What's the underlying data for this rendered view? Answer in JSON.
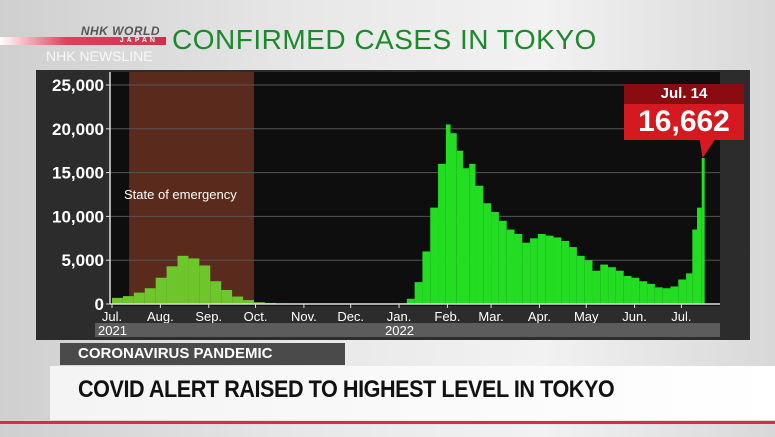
{
  "header": {
    "logo_text": "NHK WORLD JAPAN",
    "program": "NHK NEWSLINE",
    "title": "CONFIRMED CASES IN TOKYO"
  },
  "chart_data": {
    "type": "bar",
    "title": "CONFIRMED CASES IN TOKYO",
    "ylim": [
      0,
      25000
    ],
    "yticks": [
      "25,000",
      "20,000",
      "15,000",
      "10,000",
      "5,000",
      "0"
    ],
    "ytick_values": [
      25000,
      20000,
      15000,
      10000,
      5000,
      0
    ],
    "xticks": [
      "Jul.",
      "Aug.",
      "Sep.",
      "Oct.",
      "Nov.",
      "Dec.",
      "Jan.",
      "Feb.",
      "Mar.",
      "Apr.",
      "May",
      "Jun.",
      "Jul."
    ],
    "xtick_dates": [
      "2021-07-01",
      "2021-08-01",
      "2021-09-01",
      "2021-10-01",
      "2021-11-01",
      "2021-12-01",
      "2022-01-01",
      "2022-02-01",
      "2022-03-01",
      "2022-04-01",
      "2022-05-01",
      "2022-06-01",
      "2022-07-01"
    ],
    "years": [
      {
        "label": "2021",
        "date": "2021-07-01"
      },
      {
        "label": "2022",
        "date": "2022-01-01"
      }
    ],
    "shaded_period": {
      "label": "State of emergency",
      "start": "2021-07-12",
      "end": "2021-09-30",
      "color": "#5a2a1c"
    },
    "colors": {
      "emergency_bars": "#6cc62c",
      "bars": "#22dd22",
      "background": "#0e0e0e"
    },
    "x": [
      "2021-07-01",
      "2021-07-08",
      "2021-07-15",
      "2021-07-22",
      "2021-07-29",
      "2021-08-05",
      "2021-08-12",
      "2021-08-19",
      "2021-08-26",
      "2021-09-02",
      "2021-09-09",
      "2021-09-16",
      "2021-09-23",
      "2021-09-30",
      "2021-10-07",
      "2021-10-14",
      "2021-10-21",
      "2021-11-01",
      "2021-11-15",
      "2021-12-01",
      "2021-12-15",
      "2022-01-01",
      "2022-01-06",
      "2022-01-11",
      "2022-01-16",
      "2022-01-21",
      "2022-01-26",
      "2022-01-31",
      "2022-02-03",
      "2022-02-07",
      "2022-02-11",
      "2022-02-15",
      "2022-02-19",
      "2022-02-24",
      "2022-03-01",
      "2022-03-06",
      "2022-03-11",
      "2022-03-16",
      "2022-03-21",
      "2022-03-26",
      "2022-03-31",
      "2022-04-05",
      "2022-04-10",
      "2022-04-15",
      "2022-04-20",
      "2022-04-25",
      "2022-04-30",
      "2022-05-05",
      "2022-05-10",
      "2022-05-15",
      "2022-05-20",
      "2022-05-25",
      "2022-05-30",
      "2022-06-04",
      "2022-06-09",
      "2022-06-14",
      "2022-06-19",
      "2022-06-24",
      "2022-06-29",
      "2022-07-04",
      "2022-07-08",
      "2022-07-11",
      "2022-07-14"
    ],
    "values": [
      700,
      900,
      1300,
      1800,
      3000,
      4300,
      5500,
      5200,
      4400,
      2600,
      1600,
      850,
      450,
      200,
      120,
      70,
      40,
      30,
      25,
      20,
      40,
      80,
      600,
      2500,
      6000,
      11000,
      16000,
      20500,
      19500,
      17500,
      15500,
      16000,
      13500,
      11500,
      10500,
      9500,
      8500,
      8000,
      7000,
      7500,
      8000,
      7800,
      7600,
      7200,
      6500,
      5500,
      5000,
      3800,
      4500,
      4200,
      3800,
      3200,
      3000,
      2600,
      2300,
      1900,
      1800,
      2000,
      2800,
      3500,
      8500,
      11000,
      16662
    ]
  },
  "callout": {
    "date": "Jul. 14",
    "value": "16,662"
  },
  "lower_third": {
    "kicker": "CORONAVIRUS PANDEMIC",
    "headline": "COVID ALERT RAISED TO HIGHEST LEVEL IN TOKYO"
  }
}
